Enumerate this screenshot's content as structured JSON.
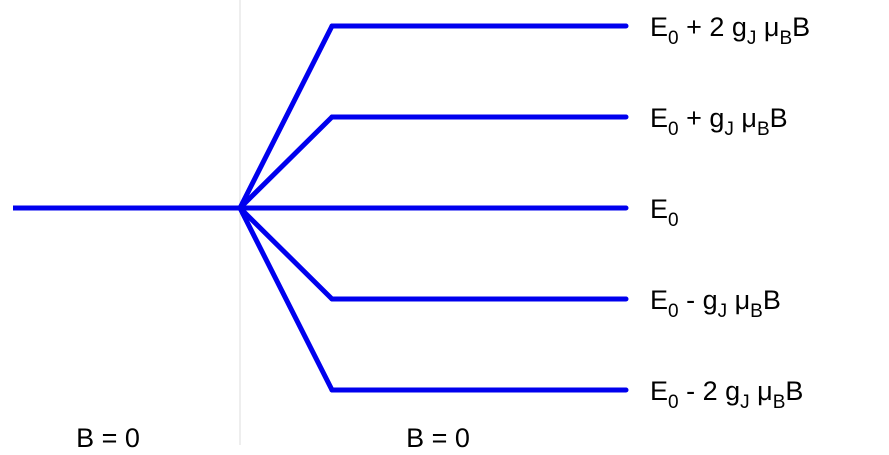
{
  "colors": {
    "line": "#0000ee",
    "divider": "#dddddd",
    "text": "#000000"
  },
  "field_labels": {
    "left": "B = 0",
    "right": "B = 0"
  },
  "levels": [
    {
      "id": "plus-2",
      "m": 2,
      "label": {
        "base": "E",
        "base_sub": "0",
        "op": " + 2 g",
        "op_sub": "J",
        "mu": " μ",
        "mu_sub": "B",
        "tail": "B"
      }
    },
    {
      "id": "plus-1",
      "m": 1,
      "label": {
        "base": "E",
        "base_sub": "0",
        "op": " + g",
        "op_sub": "J",
        "mu": " μ",
        "mu_sub": "B",
        "tail": "B"
      }
    },
    {
      "id": "zero",
      "m": 0,
      "label": {
        "base": "E",
        "base_sub": "0",
        "op": "",
        "op_sub": "",
        "mu": "",
        "mu_sub": "",
        "tail": ""
      }
    },
    {
      "id": "minus-1",
      "m": -1,
      "label": {
        "base": "E",
        "base_sub": "0",
        "op": " - g",
        "op_sub": "J",
        "mu": " μ",
        "mu_sub": "B",
        "tail": "B"
      }
    },
    {
      "id": "minus-2",
      "m": -2,
      "label": {
        "base": "E",
        "base_sub": "0",
        "op": " - 2 g",
        "op_sub": "J",
        "mu": " μ",
        "mu_sub": "B",
        "tail": "B"
      }
    }
  ]
}
